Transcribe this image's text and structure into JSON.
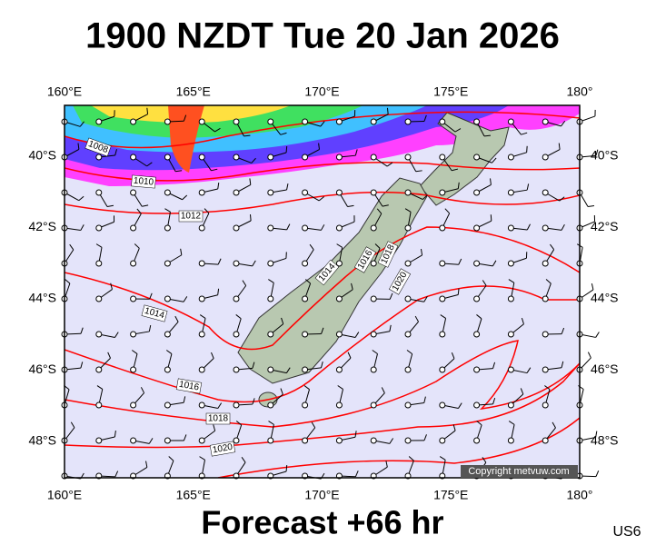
{
  "header": {
    "title": "1900 NZDT Tue 20 Jan 2026"
  },
  "longitude_labels": [
    "160°E",
    "165°E",
    "170°E",
    "175°E",
    "180°"
  ],
  "latitude_labels": [
    "40°S",
    "42°S",
    "44°S",
    "46°S",
    "48°S"
  ],
  "isobar_labels": [
    "1008",
    "1010",
    "1012",
    "1014",
    "1016",
    "1018",
    "1020",
    "1014",
    "1016",
    "1018",
    "1020"
  ],
  "copyright": "Copyright metvuw.com",
  "footer": {
    "forecast": "Forecast +66 hr",
    "code": "US6"
  }
}
